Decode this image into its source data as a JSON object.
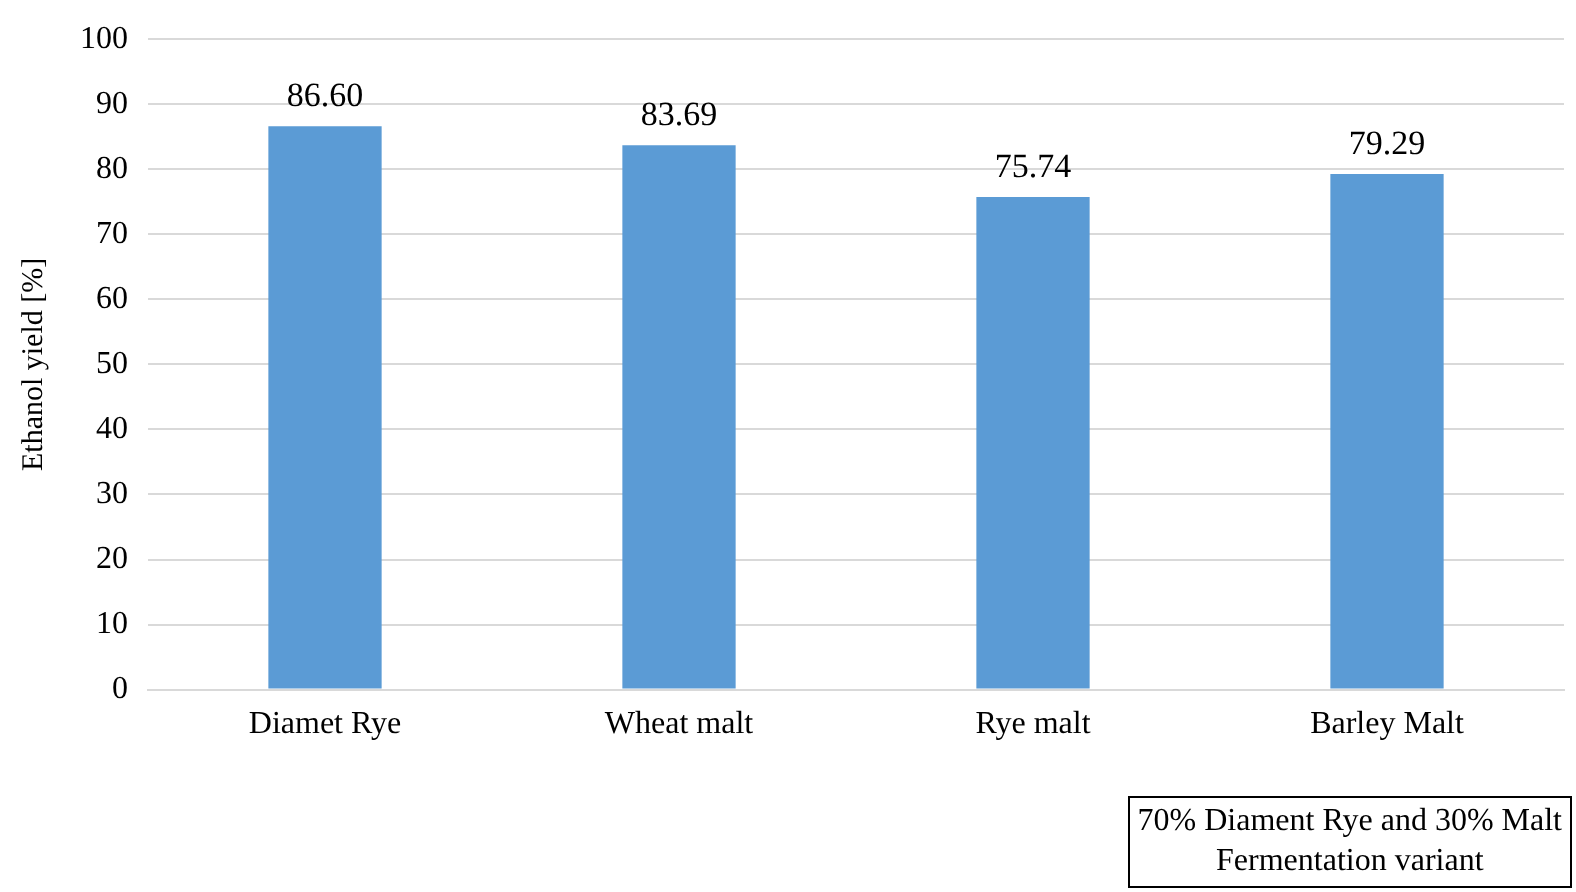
{
  "chart_data": {
    "type": "bar",
    "ylabel": "Ethanol yield [%]",
    "categories": [
      "Diamet Rye",
      "Wheat malt",
      "Rye malt",
      "Barley Malt"
    ],
    "values": [
      86.6,
      83.69,
      75.74,
      79.29
    ],
    "color": "#5b9bd5",
    "value_labels": [
      "86.60",
      "83.69",
      "75.74",
      "79.29"
    ],
    "ylim": [
      0,
      100
    ],
    "yticks": [
      0,
      10,
      20,
      30,
      40,
      50,
      60,
      70,
      80,
      90,
      100
    ],
    "grid": "y",
    "annotations": [
      "70% Diament Rye and 30% Malt",
      "Fermentation variant"
    ]
  }
}
